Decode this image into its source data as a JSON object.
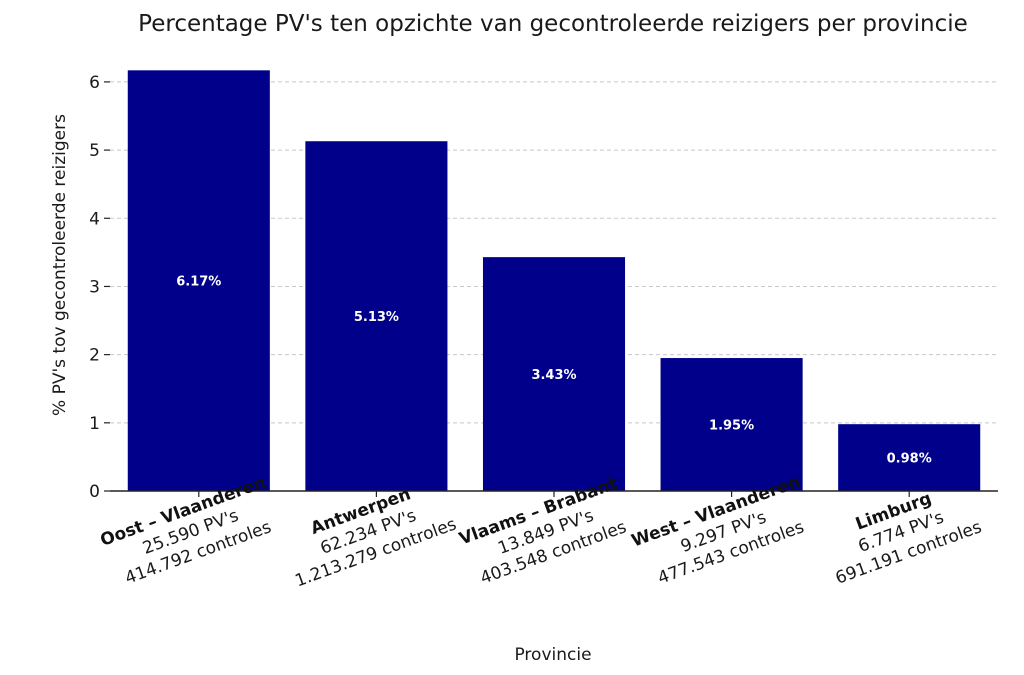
{
  "chart_data": {
    "type": "bar",
    "title": "Percentage PV's ten opzichte van gecontroleerde reizigers per provincie",
    "xlabel": "Provincie",
    "ylabel": "% PV's tov gecontroleerde reizigers",
    "ylim": [
      0,
      6.6
    ],
    "yticks": [
      "0",
      "1",
      "2",
      "3",
      "4",
      "5",
      "6"
    ],
    "grid": "horizontal dashed",
    "bar_color": "#00008b",
    "categories": [
      {
        "name": "Oost – Vlaanderen",
        "pvs": "25.590 PV's",
        "controles": "414.792 controles"
      },
      {
        "name": "Antwerpen",
        "pvs": "62.234 PV's",
        "controles": "1.213.279 controles"
      },
      {
        "name": "Vlaams – Brabant",
        "pvs": "13.849 PV's",
        "controles": "403.548 controles"
      },
      {
        "name": "West – Vlaanderen",
        "pvs": "9.297 PV's",
        "controles": "477.543 controles"
      },
      {
        "name": "Limburg",
        "pvs": "6.774 PV's",
        "controles": "691.191 controles"
      }
    ],
    "values": [
      6.17,
      5.13,
      3.43,
      1.95,
      0.98
    ],
    "data_labels": [
      "6.17%",
      "5.13%",
      "3.43%",
      "1.95%",
      "0.98%"
    ]
  }
}
